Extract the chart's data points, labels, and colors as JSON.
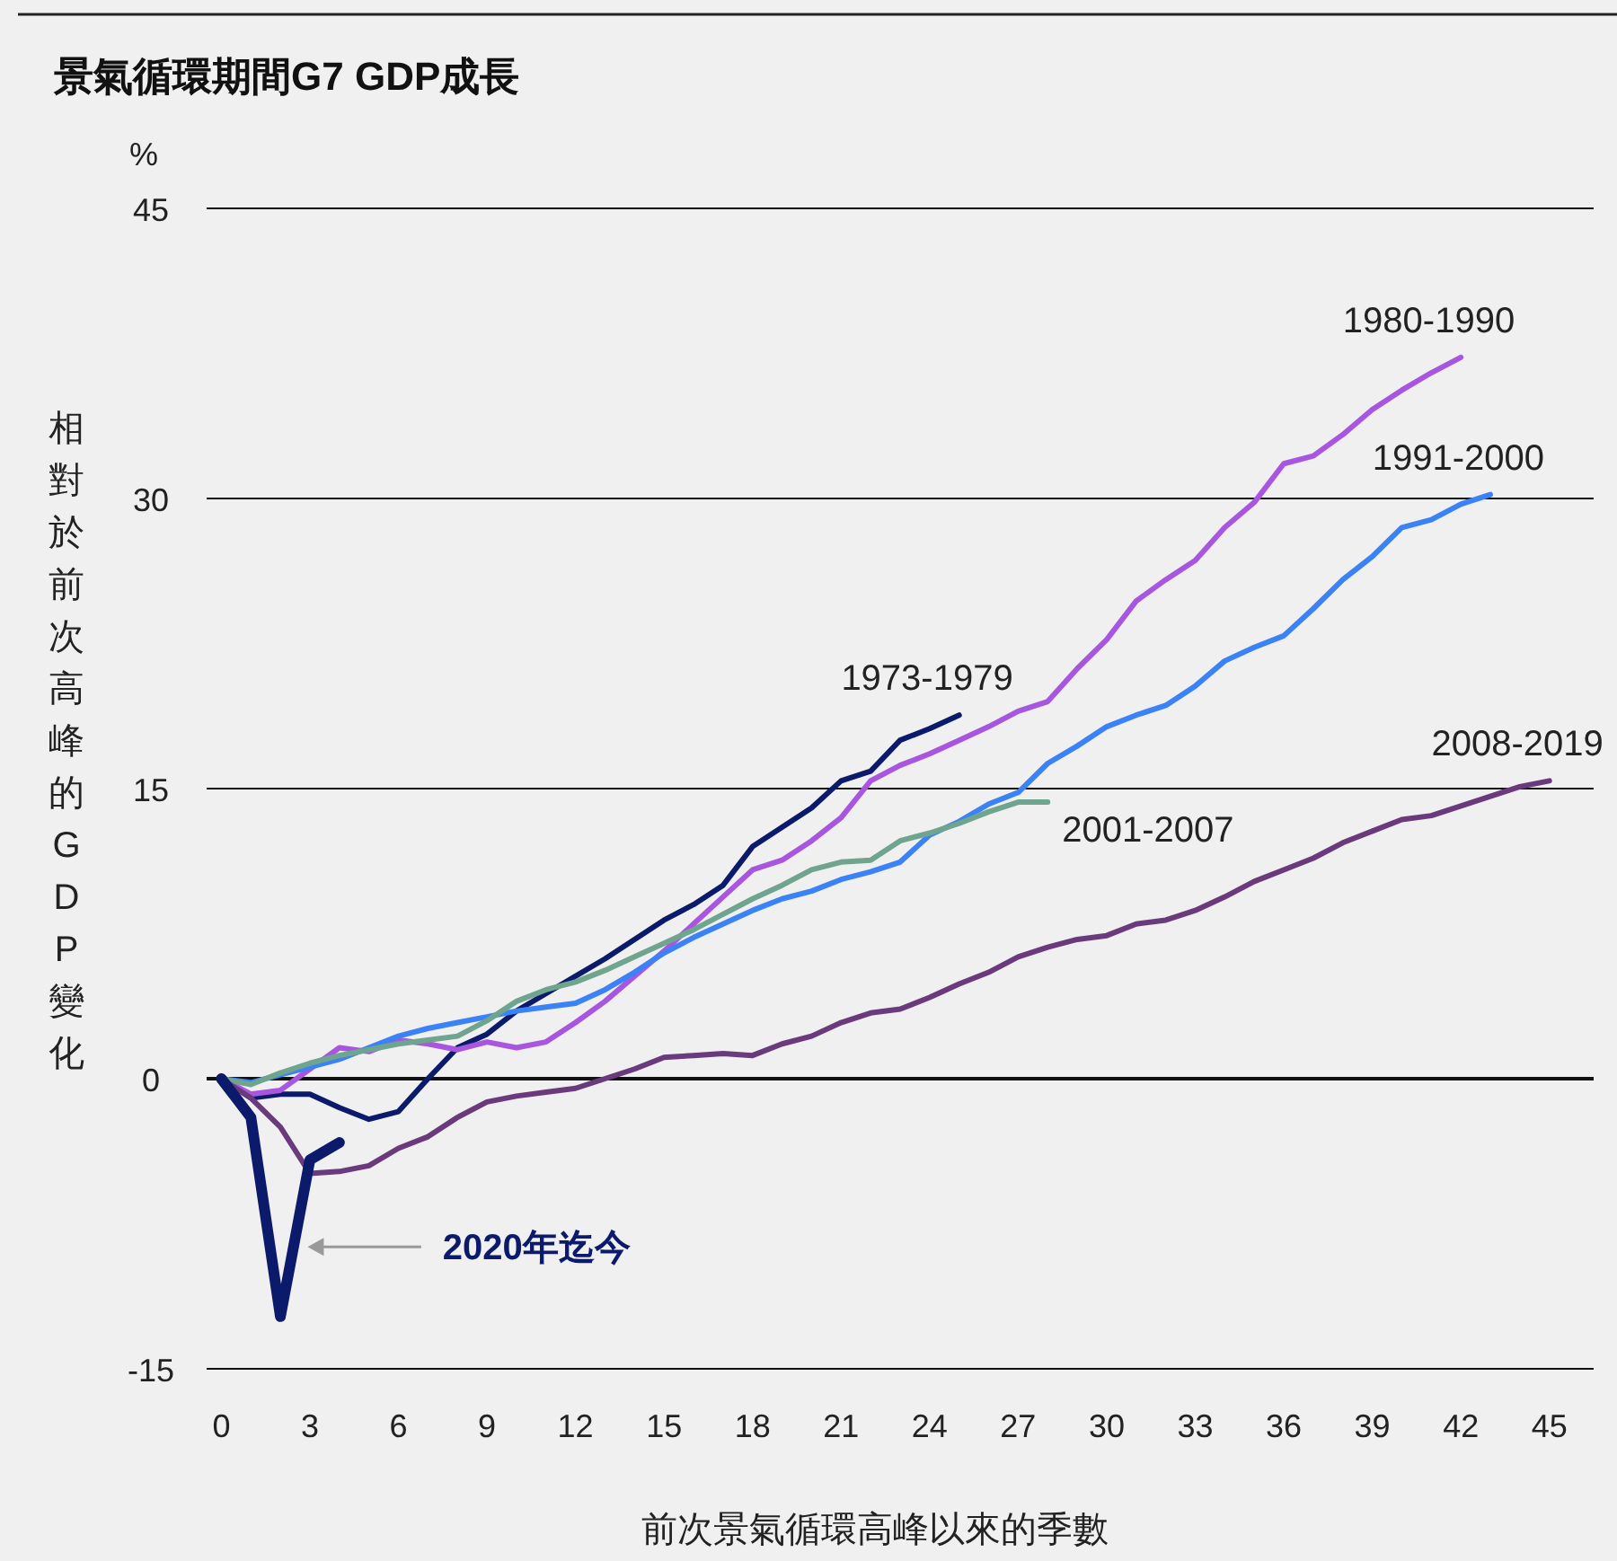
{
  "chart_data": {
    "type": "line",
    "title": "景氣循環期間G7 GDP成長",
    "ylabel": "相對於前次高峰的GDP變化",
    "xlabel": "前次景氣循環高峰以來的季數",
    "subtitle": "%",
    "xlim": [
      -0.5,
      46.5
    ],
    "xticks": [
      0,
      3,
      6,
      9,
      12,
      15,
      18,
      21,
      24,
      27,
      30,
      33,
      36,
      39,
      42,
      45
    ],
    "ylim": [
      -15,
      45
    ],
    "yticks": [
      -15,
      0,
      15,
      30,
      45
    ],
    "grid": "y",
    "marker": "none",
    "line_style": "solid",
    "series": [
      {
        "name": "1973-1979",
        "color": "#0b1a6b",
        "x": [
          0,
          1,
          2,
          3,
          4,
          5,
          6,
          7,
          8,
          9,
          10,
          11,
          12,
          13,
          14,
          15,
          16,
          17,
          18,
          19,
          20,
          21,
          22,
          23,
          24,
          25
        ],
        "values": [
          0,
          -1,
          -0.8,
          -0.8,
          -1.5,
          -2.1,
          -1.7,
          0,
          1.6,
          2.3,
          3.5,
          4.4,
          5.3,
          6.2,
          7.2,
          8.2,
          9.0,
          10.0,
          12.0,
          13.0,
          14.0,
          15.4,
          15.9,
          17.5,
          18.1,
          18.8
        ]
      },
      {
        "name": "1980-1990",
        "color": "#a855e0",
        "x": [
          0,
          1,
          2,
          3,
          4,
          5,
          6,
          7,
          8,
          9,
          10,
          11,
          12,
          13,
          14,
          15,
          16,
          17,
          18,
          19,
          20,
          21,
          22,
          23,
          24,
          25,
          26,
          27,
          28,
          29,
          30,
          31,
          32,
          33,
          34,
          35,
          36,
          37,
          38,
          39,
          40,
          41,
          42
        ],
        "values": [
          0,
          -0.8,
          -0.6,
          0.5,
          1.6,
          1.4,
          2.0,
          1.8,
          1.5,
          1.9,
          1.6,
          1.9,
          2.9,
          4.0,
          5.3,
          6.6,
          8.0,
          9.4,
          10.8,
          11.3,
          12.3,
          13.5,
          15.4,
          16.2,
          16.8,
          17.5,
          18.2,
          19.0,
          19.5,
          21.2,
          22.7,
          24.7,
          25.8,
          26.8,
          28.5,
          29.8,
          31.8,
          32.2,
          33.3,
          34.6,
          35.6,
          36.5,
          37.3
        ]
      },
      {
        "name": "1991-2000",
        "color": "#3b82f6",
        "x": [
          0,
          1,
          2,
          3,
          4,
          5,
          6,
          7,
          8,
          9,
          10,
          11,
          12,
          13,
          14,
          15,
          16,
          17,
          18,
          19,
          20,
          21,
          22,
          23,
          24,
          25,
          26,
          27,
          28,
          29,
          30,
          31,
          32,
          33,
          34,
          35,
          36,
          37,
          38,
          39,
          40,
          41,
          42,
          43
        ],
        "values": [
          0,
          -0.2,
          0.2,
          0.6,
          1.0,
          1.6,
          2.2,
          2.6,
          2.9,
          3.2,
          3.5,
          3.7,
          3.9,
          4.6,
          5.5,
          6.5,
          7.3,
          8.0,
          8.7,
          9.3,
          9.7,
          10.3,
          10.7,
          11.2,
          12.6,
          13.3,
          14.2,
          14.8,
          16.3,
          17.2,
          18.2,
          18.8,
          19.3,
          20.3,
          21.6,
          22.3,
          22.9,
          24.3,
          25.8,
          27.0,
          28.5,
          28.9,
          29.7,
          30.2
        ]
      },
      {
        "name": "2001-2007",
        "color": "#6fa58f",
        "x": [
          0,
          1,
          2,
          3,
          4,
          5,
          6,
          7,
          8,
          9,
          10,
          11,
          12,
          13,
          14,
          15,
          16,
          17,
          18,
          19,
          20,
          21,
          22,
          23,
          24,
          25,
          26,
          27,
          28
        ],
        "values": [
          0,
          -0.3,
          0.3,
          0.8,
          1.2,
          1.5,
          1.8,
          2.0,
          2.2,
          3.0,
          4.0,
          4.6,
          5.0,
          5.6,
          6.3,
          7.0,
          7.7,
          8.5,
          9.3,
          10.0,
          10.8,
          11.2,
          11.3,
          12.3,
          12.7,
          13.2,
          13.8,
          14.3,
          14.3
        ]
      },
      {
        "name": "2008-2019",
        "color": "#6b3a7d",
        "x": [
          0,
          1,
          2,
          3,
          4,
          5,
          6,
          7,
          8,
          9,
          10,
          11,
          12,
          13,
          14,
          15,
          16,
          17,
          18,
          19,
          20,
          21,
          22,
          23,
          24,
          25,
          26,
          27,
          28,
          29,
          30,
          31,
          32,
          33,
          34,
          35,
          36,
          37,
          38,
          39,
          40,
          41,
          42,
          43,
          44,
          45
        ],
        "values": [
          0,
          -1,
          -2.5,
          -4.9,
          -4.8,
          -4.5,
          -3.6,
          -3.0,
          -2.0,
          -1.2,
          -0.9,
          -0.7,
          -0.5,
          0,
          0.5,
          1.1,
          1.2,
          1.3,
          1.2,
          1.8,
          2.2,
          2.9,
          3.4,
          3.6,
          4.2,
          4.9,
          5.5,
          6.3,
          6.8,
          7.2,
          7.4,
          8.0,
          8.2,
          8.7,
          9.4,
          10.2,
          10.8,
          11.4,
          12.2,
          12.8,
          13.4,
          13.6,
          14.1,
          14.6,
          15.1,
          15.4
        ]
      },
      {
        "name": "2020年迄今",
        "color": "#0b1a6b",
        "x": [
          0,
          1,
          2,
          3,
          4
        ],
        "values": [
          0,
          -2,
          -12.3,
          -4.2,
          -3.3
        ]
      }
    ]
  }
}
